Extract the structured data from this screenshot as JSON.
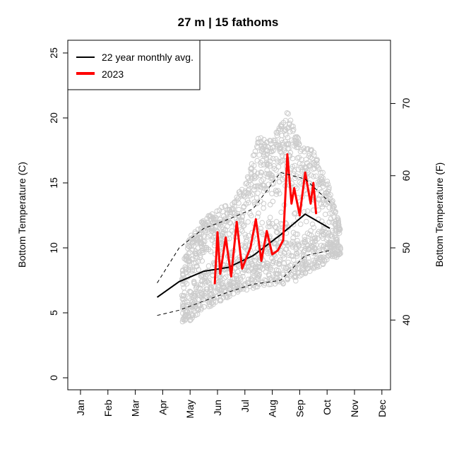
{
  "chart_data": {
    "type": "line",
    "title": "27 m | 15 fathoms",
    "ylabel": "Bottom Temperature (C)",
    "ylabel_right": "Bottom Temperature (F)",
    "ylim": [
      0,
      26
    ],
    "yticks": [
      0,
      5,
      10,
      15,
      20,
      25
    ],
    "yticks_right": [
      40,
      50,
      60,
      70
    ],
    "xticks": [
      "Jan",
      "Feb",
      "Mar",
      "Apr",
      "May",
      "Jun",
      "Jul",
      "Aug",
      "Sep",
      "Oct",
      "Nov",
      "Dec"
    ],
    "x_unit": "month",
    "grid": false,
    "legend_position": "top-left",
    "series": [
      {
        "name": "22 year monthly avg.",
        "style": "solid",
        "color": "#000000",
        "x": [
          3.8,
          4.6,
          5.5,
          6.4,
          7.3,
          8.3,
          9.2,
          10.1
        ],
        "y": [
          6.2,
          7.4,
          8.2,
          8.5,
          9.4,
          11.0,
          12.6,
          11.5
        ]
      },
      {
        "name": "2023",
        "style": "solid",
        "color": "#ff0000",
        "x": [
          5.9,
          6.0,
          6.1,
          6.3,
          6.5,
          6.7,
          6.9,
          7.2,
          7.4,
          7.6,
          7.8,
          8.0,
          8.2,
          8.4,
          8.55,
          8.7,
          8.8,
          9.0,
          9.2,
          9.4,
          9.5,
          9.6
        ],
        "y": [
          7.2,
          11.2,
          8.0,
          10.8,
          7.8,
          12.0,
          8.4,
          10.0,
          12.2,
          9.0,
          11.3,
          9.5,
          9.8,
          10.6,
          17.2,
          13.4,
          14.6,
          12.5,
          15.8,
          13.4,
          15.0,
          12.6
        ]
      },
      {
        "name": "",
        "style": "dashed",
        "color": "#000000",
        "x": [
          3.8,
          4.6,
          5.5,
          6.4,
          7.3,
          8.3,
          9.2,
          10.1
        ],
        "y": [
          7.3,
          10.0,
          11.5,
          12.2,
          13.0,
          15.8,
          15.3,
          13.5
        ]
      },
      {
        "name": "",
        "style": "dashed",
        "color": "#000000",
        "x": [
          3.8,
          4.6,
          5.5,
          6.4,
          7.3,
          8.3,
          9.2,
          10.1
        ],
        "y": [
          4.8,
          5.2,
          5.9,
          6.6,
          7.2,
          7.5,
          9.4,
          9.8
        ]
      }
    ],
    "scatter_band": {
      "color": "#cccccc",
      "description_points": {
        "x": [
          4.7,
          5.0,
          5.5,
          6.0,
          6.5,
          7.0,
          7.5,
          8.0,
          8.5,
          9.0,
          9.5,
          10.0,
          10.5
        ],
        "ymin": [
          4.3,
          4.4,
          5.2,
          5.8,
          6.2,
          6.7,
          7.0,
          7.2,
          7.2,
          7.5,
          8.4,
          8.8,
          9.5
        ],
        "ymax": [
          8.5,
          11.0,
          12.2,
          13.0,
          13.5,
          15.0,
          18.5,
          18.3,
          20.8,
          18.2,
          17.5,
          15.2,
          11.5
        ]
      }
    }
  }
}
